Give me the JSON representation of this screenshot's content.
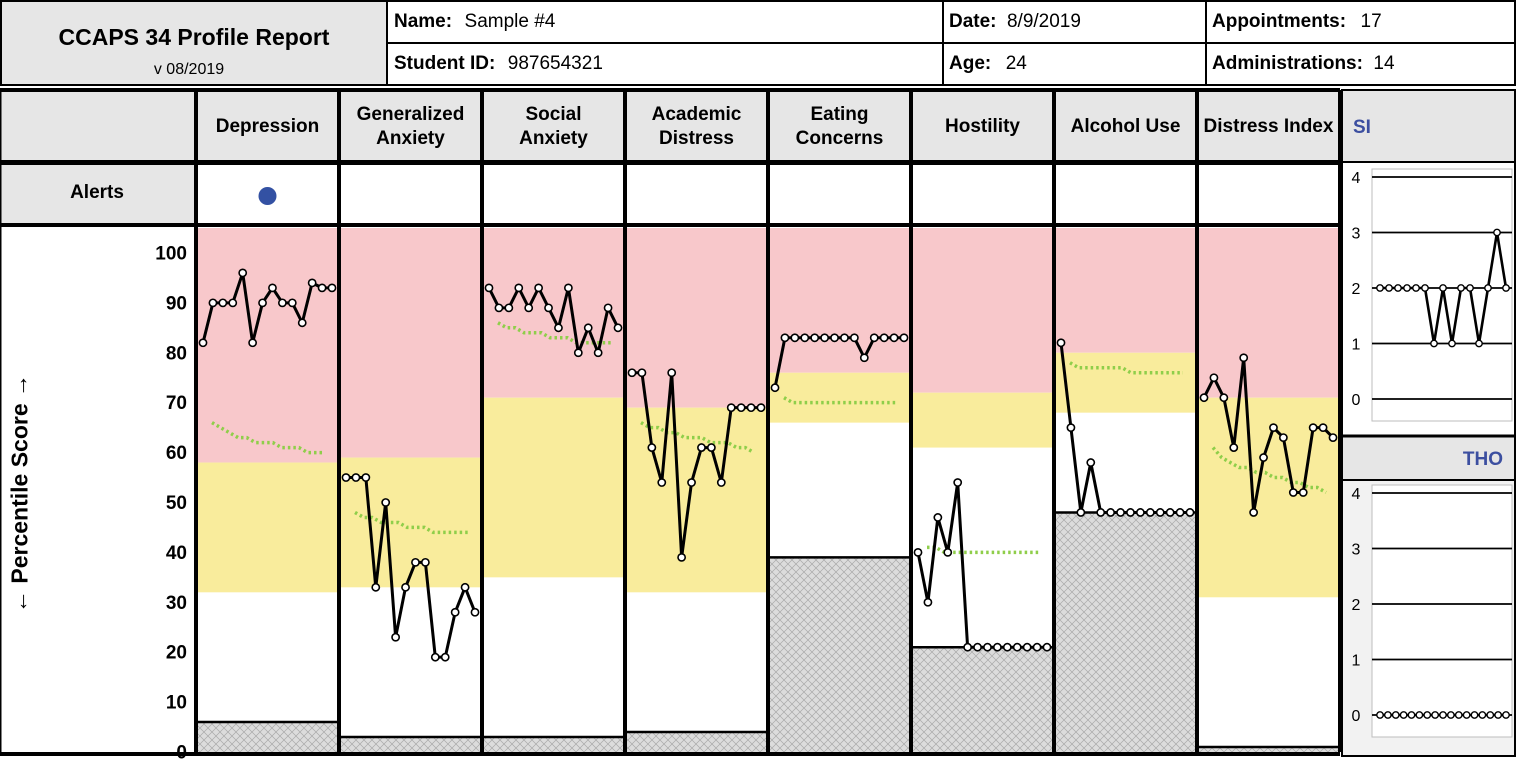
{
  "report": {
    "title": "CCAPS 34 Profile Report",
    "version": "v 08/2019"
  },
  "header": {
    "name_label": "Name:",
    "name_value": "Sample #4",
    "date_label": "Date:",
    "date_value": "8/9/2019",
    "appointments_label": "Appointments:",
    "appointments_value": "17",
    "student_id_label": "Student ID:",
    "student_id_value": "987654321",
    "age_label": "Age:",
    "age_value": "24",
    "administrations_label": "Administrations:",
    "administrations_value": "14"
  },
  "alerts_label": "Alerts",
  "colors": {
    "red_zone": "#f8c8cb",
    "yellow_zone": "#f9ec9c",
    "floor": "#dcdcdc",
    "trend": "#8fce4a",
    "alert_dot": "#3351a3",
    "header_bg": "#e6e6e6",
    "accent_text": "#3c4fa0"
  },
  "chart_data": {
    "type": "line",
    "ylabel": "← Percentile Score →",
    "ylim": [
      0,
      105
    ],
    "yticks": [
      "100",
      "90",
      "80",
      "70",
      "60",
      "50",
      "40",
      "30",
      "20",
      "10",
      "0"
    ],
    "scales": [
      {
        "name": "Depression",
        "label_lines": [
          "Depression"
        ],
        "alert": true,
        "floor": 6,
        "yellow_from": 32,
        "red_from": 58,
        "values": [
          82,
          90,
          90,
          90,
          96,
          82,
          90,
          93,
          90,
          90,
          86,
          94,
          93,
          93
        ],
        "trend": [
          66,
          65,
          64,
          63,
          63,
          62,
          62,
          62,
          61,
          61,
          61,
          60,
          60,
          60
        ]
      },
      {
        "name": "Generalized Anxiety",
        "label_lines": [
          "Generalized",
          "Anxiety"
        ],
        "alert": false,
        "floor": 3,
        "yellow_from": 33,
        "red_from": 59,
        "values": [
          55,
          55,
          55,
          33,
          50,
          23,
          33,
          38,
          38,
          19,
          19,
          28,
          33,
          28
        ],
        "trend": [
          48,
          47,
          47,
          46,
          46,
          46,
          45,
          45,
          45,
          44,
          44,
          44,
          44,
          44
        ]
      },
      {
        "name": "Social Anxiety",
        "label_lines": [
          "Social",
          "Anxiety"
        ],
        "alert": false,
        "floor": 3,
        "yellow_from": 35,
        "red_from": 71,
        "values": [
          93,
          89,
          89,
          93,
          89,
          93,
          89,
          85,
          93,
          80,
          85,
          80,
          89,
          85
        ],
        "trend": [
          86,
          85,
          85,
          84,
          84,
          84,
          83,
          83,
          83,
          82,
          82,
          82,
          82,
          82
        ]
      },
      {
        "name": "Academic Distress",
        "label_lines": [
          "Academic",
          "Distress"
        ],
        "alert": false,
        "floor": 4,
        "yellow_from": 32,
        "red_from": 69,
        "values": [
          76,
          76,
          61,
          54,
          76,
          39,
          54,
          61,
          61,
          54,
          69,
          69,
          69,
          69
        ],
        "trend": [
          66,
          65,
          65,
          64,
          64,
          63,
          63,
          63,
          62,
          62,
          62,
          61,
          61,
          60
        ]
      },
      {
        "name": "Eating Concerns",
        "label_lines": [
          "Eating",
          "Concerns"
        ],
        "alert": false,
        "floor": 39,
        "yellow_from": 66,
        "red_from": 76,
        "values": [
          73,
          83,
          83,
          83,
          83,
          83,
          83,
          83,
          83,
          79,
          83,
          83,
          83,
          83
        ],
        "trend": [
          71,
          70,
          70,
          70,
          70,
          70,
          70,
          70,
          70,
          70,
          70,
          70,
          70,
          70
        ]
      },
      {
        "name": "Hostility",
        "label_lines": [
          "Hostility"
        ],
        "alert": false,
        "floor": 21,
        "yellow_from": 61,
        "red_from": 72,
        "values": [
          40,
          30,
          47,
          40,
          54,
          21,
          21,
          21,
          21,
          21,
          21,
          21,
          21,
          21
        ],
        "trend": [
          41,
          41,
          40,
          40,
          40,
          40,
          40,
          40,
          40,
          40,
          40,
          40,
          40,
          40
        ]
      },
      {
        "name": "Alcohol Use",
        "label_lines": [
          "Alcohol Use"
        ],
        "alert": false,
        "floor": 48,
        "yellow_from": 68,
        "red_from": 80,
        "values": [
          82,
          65,
          48,
          58,
          48,
          48,
          48,
          48,
          48,
          48,
          48,
          48,
          48,
          48
        ],
        "trend": [
          78,
          77,
          77,
          77,
          77,
          77,
          77,
          76,
          76,
          76,
          76,
          76,
          76,
          76
        ]
      },
      {
        "name": "Distress Index",
        "label_lines": [
          "Distress Index"
        ],
        "alert": false,
        "floor": 1,
        "yellow_from": 31,
        "red_from": 71,
        "values": [
          71,
          75,
          71,
          61,
          79,
          48,
          59,
          65,
          63,
          52,
          52,
          65,
          65,
          63
        ],
        "trend": [
          61,
          59,
          58,
          57,
          57,
          56,
          56,
          55,
          55,
          54,
          54,
          53,
          53,
          52
        ]
      }
    ],
    "side_charts": [
      {
        "name": "SI",
        "ylim": [
          0,
          4
        ],
        "yticks": [
          "4",
          "3",
          "2",
          "1",
          "0"
        ],
        "values": [
          2,
          2,
          2,
          2,
          2,
          2,
          1,
          2,
          1,
          2,
          2,
          1,
          2,
          3,
          2
        ]
      },
      {
        "name": "THO",
        "ylim": [
          0,
          4
        ],
        "yticks": [
          "4",
          "3",
          "2",
          "1",
          "0"
        ],
        "values": [
          0,
          0,
          0,
          0,
          0,
          0,
          0,
          0,
          0,
          0,
          0,
          0,
          0,
          0,
          0,
          0,
          0
        ]
      }
    ]
  }
}
